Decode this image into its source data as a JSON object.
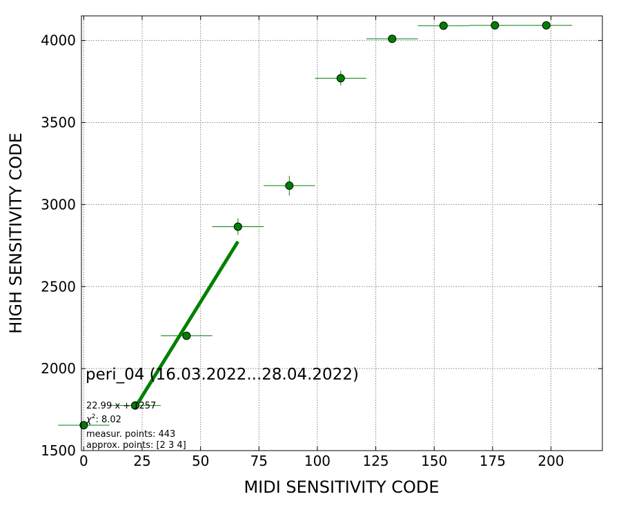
{
  "chart_data": {
    "type": "scatter",
    "title": "",
    "xlabel": "MIDI SENSITIVITY CODE",
    "ylabel": "HIGH SENSITIVITY CODE",
    "xlim": [
      -1,
      222
    ],
    "ylim": [
      1500,
      4150
    ],
    "xticks": [
      0,
      25,
      50,
      75,
      100,
      125,
      150,
      175,
      200
    ],
    "yticks": [
      1500,
      2000,
      2500,
      3000,
      3500,
      4000
    ],
    "grid": true,
    "grid_style": "dotted",
    "colors": {
      "points": "#008000",
      "fit_line": "#008000",
      "grid": "#808080"
    },
    "series": [
      {
        "marker": "circle",
        "points": [
          {
            "x": 0,
            "y": 1655,
            "xerr": 11,
            "yerr": 10
          },
          {
            "x": 22,
            "y": 1775,
            "xerr": 11,
            "yerr": 15
          },
          {
            "x": 44,
            "y": 2200,
            "xerr": 11,
            "yerr": 20
          },
          {
            "x": 66,
            "y": 2865,
            "xerr": 11,
            "yerr": 50
          },
          {
            "x": 88,
            "y": 3115,
            "xerr": 11,
            "yerr": 60
          },
          {
            "x": 110,
            "y": 3770,
            "xerr": 11,
            "yerr": 45
          },
          {
            "x": 132,
            "y": 4010,
            "xerr": 11,
            "yerr": 12
          },
          {
            "x": 154,
            "y": 4090,
            "xerr": 11,
            "yerr": 6
          },
          {
            "x": 176,
            "y": 4092,
            "xerr": 11,
            "yerr": 6
          },
          {
            "x": 198,
            "y": 4092,
            "xerr": 11,
            "yerr": 6
          }
        ]
      }
    ],
    "fit": {
      "slope": 22.99,
      "intercept": 1257,
      "x_range": [
        22,
        66
      ]
    },
    "annotations": {
      "label": "peri_04 (16.03.2022...28.04.2022)",
      "equation": "22.99 x + 1257",
      "chi2_symbol": "χ",
      "chi2_exp": "2",
      "chi2_value": ": 8.02",
      "measur_points": "measur. points: 443",
      "approx_points": "approx. points: [2 3 4]"
    }
  }
}
